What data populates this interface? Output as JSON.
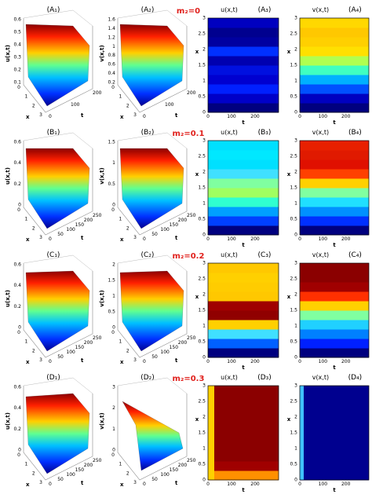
{
  "rows": [
    {
      "param": "m₂=0",
      "panels": [
        {
          "label": "(A₁)",
          "zlabel": "u(x,t)",
          "xlabel": "x",
          "tlabel": "t",
          "zticks": [
            "0.6",
            "0.5",
            "0.4",
            "0.3",
            "0.2",
            "0.1"
          ],
          "xticks": [
            "0",
            "1",
            "2",
            "3"
          ],
          "tticks": [
            "0",
            "100",
            "200"
          ]
        },
        {
          "label": "(A₂)",
          "zlabel": "v(x,t)",
          "xlabel": "x",
          "tlabel": "t",
          "zticks": [
            "1.6",
            "1.4",
            "1.2",
            "1",
            "0.8",
            "0.6",
            "0.4",
            "0.2"
          ],
          "xticks": [
            "0",
            "1",
            "2",
            "3"
          ],
          "tticks": [
            "0",
            "100",
            "200"
          ]
        },
        {
          "label": "(A₃)",
          "title": "u(x,t)",
          "ylabel": "x",
          "xlabel": "t",
          "yticks": [
            "0",
            "0.5",
            "1",
            "1.5",
            "2",
            "2.5",
            "3"
          ],
          "xticks": [
            "0",
            "100",
            "200"
          ]
        },
        {
          "label": "(A₄)",
          "title": "v(x,t)",
          "ylabel": "x",
          "xlabel": "t",
          "yticks": [
            "0",
            "0.5",
            "1",
            "1.5",
            "2",
            "2.5",
            "3"
          ],
          "xticks": [
            "0",
            "100",
            "200"
          ]
        }
      ]
    },
    {
      "param": "m₂=0.1",
      "panels": [
        {
          "label": "(B₁)",
          "zlabel": "u(x,t)",
          "xlabel": "x",
          "tlabel": "t",
          "zticks": [
            "0.6",
            "0.4",
            "0.2",
            "0"
          ],
          "xticks": [
            "0",
            "1",
            "2",
            "3"
          ],
          "tticks": [
            "0",
            "50",
            "100",
            "150",
            "200",
            "250"
          ]
        },
        {
          "label": "(B₂)",
          "zlabel": "v(x,t)",
          "xlabel": "x",
          "tlabel": "t",
          "zticks": [
            "1.5",
            "1",
            "0.5",
            "0"
          ],
          "xticks": [
            "0",
            "1",
            "2",
            "3"
          ],
          "tticks": [
            "0",
            "50",
            "100",
            "150",
            "200",
            "250"
          ]
        },
        {
          "label": "(B₃)",
          "title": "u(x,t)",
          "ylabel": "x",
          "xlabel": "t",
          "yticks": [
            "0",
            "0.5",
            "1",
            "1.5",
            "2",
            "2.5",
            "3"
          ],
          "xticks": [
            "0",
            "100",
            "200"
          ]
        },
        {
          "label": "(B₄)",
          "title": "v(x,t)",
          "ylabel": "x",
          "xlabel": "t",
          "yticks": [
            "0",
            "0.5",
            "1",
            "1.5",
            "2",
            "2.5",
            "3"
          ],
          "xticks": [
            "0",
            "100",
            "200"
          ]
        }
      ]
    },
    {
      "param": "m₂=0.2",
      "panels": [
        {
          "label": "(C₁)",
          "zlabel": "u(x,t)",
          "xlabel": "x",
          "tlabel": "t",
          "zticks": [
            "0.6",
            "0.4",
            "0.2",
            "0"
          ],
          "xticks": [
            "0",
            "1",
            "2",
            "3"
          ],
          "tticks": [
            "0",
            "50",
            "100",
            "150",
            "200",
            "250"
          ]
        },
        {
          "label": "(C₂)",
          "zlabel": "v(x,t)",
          "xlabel": "x",
          "tlabel": "t",
          "zticks": [
            "2",
            "1.5",
            "1",
            "0.5",
            "0"
          ],
          "xticks": [
            "0",
            "1",
            "2",
            "3"
          ],
          "tticks": [
            "0",
            "50",
            "100",
            "150",
            "200",
            "250"
          ]
        },
        {
          "label": "(C₃)",
          "title": "u(x,t)",
          "ylabel": "x",
          "xlabel": "t",
          "yticks": [
            "0",
            "0.5",
            "1",
            "1.5",
            "2",
            "2.5",
            "3"
          ],
          "xticks": [
            "0",
            "100",
            "200"
          ]
        },
        {
          "label": "(C₄)",
          "title": "v(x,t)",
          "ylabel": "x",
          "xlabel": "t",
          "yticks": [
            "0",
            "0.5",
            "1",
            "1.5",
            "2",
            "2.5",
            "3"
          ],
          "xticks": [
            "0",
            "100",
            "200"
          ]
        }
      ]
    },
    {
      "param": "m₂=0.3",
      "panels": [
        {
          "label": "(D₁)",
          "zlabel": "u(x,t)",
          "xlabel": "x",
          "tlabel": "t",
          "zticks": [
            "0.6",
            "0.4",
            "0.2",
            "0"
          ],
          "xticks": [
            "0",
            "1",
            "2",
            "3"
          ],
          "tticks": [
            "0",
            "50",
            "100",
            "150",
            "200",
            "250"
          ]
        },
        {
          "label": "(D₂)",
          "zlabel": "v(x,t)",
          "xlabel": "x",
          "tlabel": "t",
          "zticks": [
            "3",
            "2",
            "1",
            "0"
          ],
          "xticks": [
            "0",
            "1",
            "2",
            "3"
          ],
          "tticks": [
            "0",
            "50",
            "100",
            "150",
            "200",
            "250"
          ]
        },
        {
          "label": "(D₃)",
          "title": "u(x,t)",
          "ylabel": "x",
          "xlabel": "t",
          "yticks": [
            "0",
            "0.5",
            "1",
            "1.5",
            "2",
            "2.5",
            "3"
          ],
          "xticks": [
            "0",
            "100",
            "200"
          ]
        },
        {
          "label": "(D₄)",
          "title": "v(x,t)",
          "ylabel": "x",
          "xlabel": "t",
          "yticks": [
            "0",
            "0.5",
            "1",
            "1.5",
            "2",
            "2.5",
            "3"
          ],
          "xticks": [
            "0",
            "100",
            "200"
          ]
        }
      ]
    }
  ]
}
